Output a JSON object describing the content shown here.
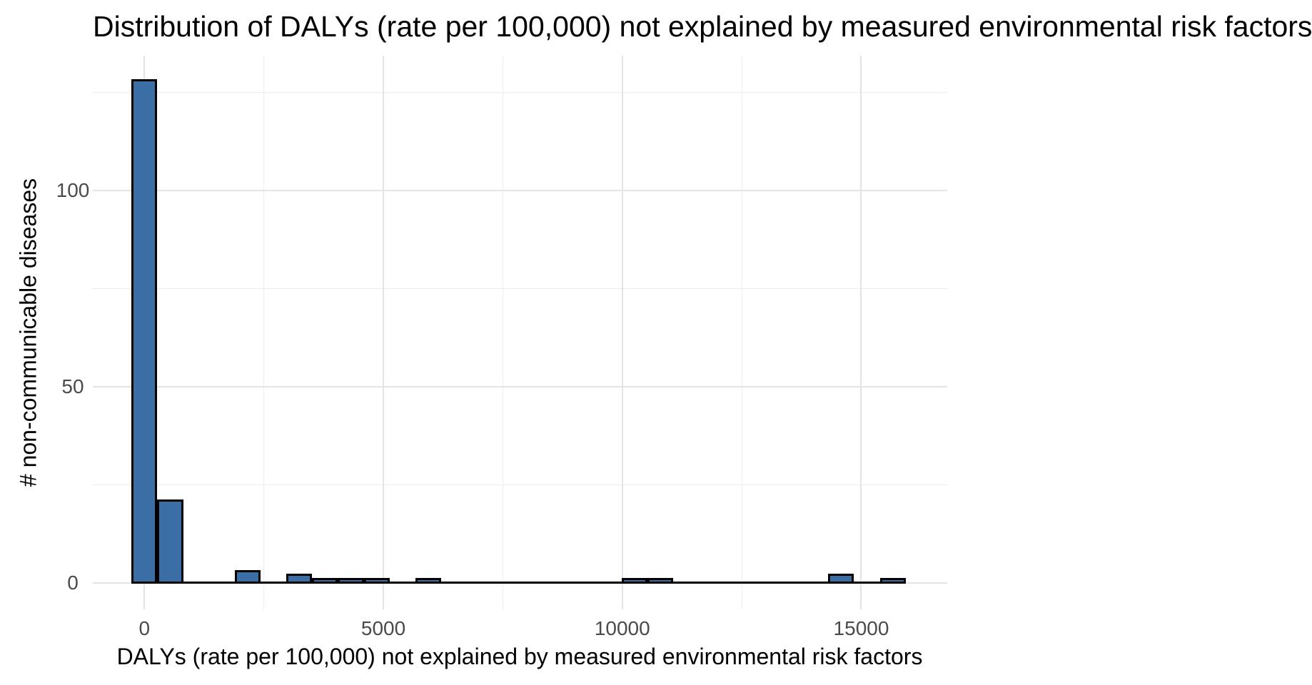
{
  "title": "Distribution of DALYs (rate per 100,000) not explained by measured environmental risk factors",
  "chart_data": {
    "type": "bar",
    "subtype": "histogram",
    "title": "Distribution of DALYs (rate per 100,000) not explained by measured environmental risk factors",
    "xlabel": "DALYs (rate per 100,000) not explained by measured environmental risk factors",
    "ylabel": "# non-communicable diseases",
    "bin_width": 540,
    "bin_centers": [
      0,
      540,
      1080,
      1620,
      2160,
      2700,
      3240,
      3780,
      4320,
      4860,
      5400,
      5940,
      6480,
      7020,
      7560,
      8100,
      8640,
      9180,
      9720,
      10260,
      10800,
      11340,
      11880,
      12420,
      12960,
      13500,
      14040,
      14580,
      15120,
      15660
    ],
    "counts": [
      128,
      21,
      0,
      0,
      3,
      0,
      2,
      1,
      1,
      1,
      0,
      1,
      0,
      0,
      0,
      0,
      0,
      0,
      0,
      1,
      1,
      0,
      0,
      0,
      0,
      0,
      0,
      2,
      0,
      1
    ],
    "x_ticks": [
      0,
      5000,
      10000,
      15000
    ],
    "x_tick_labels": [
      "0",
      "5000",
      "10000",
      "15000"
    ],
    "y_ticks": [
      0,
      50,
      100
    ],
    "y_tick_labels": [
      "0",
      "50",
      "100"
    ],
    "x_minor_gridlines": [
      2500,
      7500,
      12500
    ],
    "y_minor_gridlines": [
      25,
      75,
      125
    ],
    "xlim": [
      -1080,
      16800
    ],
    "ylim": [
      -6.8,
      134.3
    ],
    "grid": true,
    "legend": false,
    "bar_fill": "#3A6EA5",
    "bar_stroke": "#000000",
    "major_grid_color": "#e4e4e4",
    "minor_grid_color": "#ededed",
    "tick_label_color": "#4a4a4a",
    "text_color": "#000000",
    "background": "#ffffff"
  }
}
